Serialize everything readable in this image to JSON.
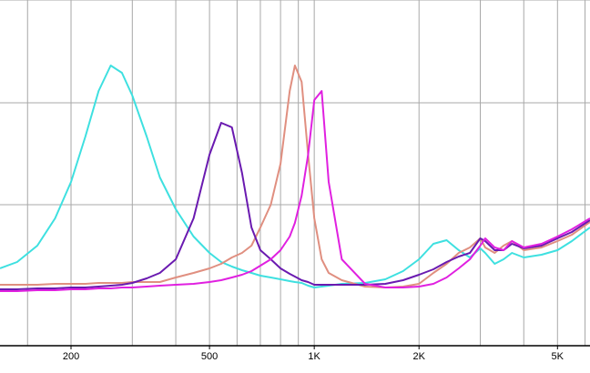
{
  "chart_data": {
    "type": "line",
    "xscale": "log",
    "xlim": [
      125,
      6200
    ],
    "ylim": [
      0,
      380
    ],
    "xticks": [
      200,
      500,
      {
        "value": 1000,
        "label": "1K"
      },
      {
        "value": 2000,
        "label": "2K"
      },
      {
        "value": 5000,
        "label": "5K"
      }
    ],
    "xgrid": [
      150,
      200,
      300,
      400,
      500,
      600,
      700,
      800,
      900,
      1000,
      2000,
      3000,
      4000,
      5000,
      6000
    ],
    "ygrid": [
      155,
      267,
      380
    ],
    "grid": true,
    "x": [
      125,
      140,
      160,
      180,
      200,
      220,
      240,
      260,
      280,
      300,
      330,
      360,
      400,
      450,
      500,
      540,
      580,
      620,
      660,
      700,
      750,
      800,
      850,
      880,
      920,
      960,
      1000,
      1050,
      1100,
      1200,
      1400,
      1600,
      1800,
      2000,
      2200,
      2400,
      2600,
      2800,
      3000,
      3100,
      3300,
      3500,
      3700,
      4000,
      4500,
      5000,
      5500,
      6200
    ],
    "series": [
      {
        "color": "#3ee0e0",
        "values": [
          85,
          92,
          110,
          140,
          180,
          230,
          280,
          308,
          300,
          275,
          230,
          185,
          150,
          120,
          102,
          92,
          87,
          83,
          80,
          77,
          75,
          73,
          71,
          70,
          69,
          66,
          64,
          65,
          66,
          68,
          69,
          73,
          82,
          95,
          112,
          116,
          105,
          97,
          107,
          102,
          90,
          95,
          102,
          97,
          100,
          105,
          115,
          130
        ]
      },
      {
        "color": "#e08f80",
        "values": [
          67,
          67,
          67,
          68,
          68,
          68,
          69,
          69,
          69,
          70,
          70,
          70,
          75,
          80,
          85,
          90,
          97,
          102,
          110,
          130,
          155,
          200,
          280,
          308,
          290,
          210,
          140,
          95,
          80,
          72,
          65,
          64,
          65,
          68,
          80,
          90,
          102,
          108,
          118,
          108,
          102,
          110,
          115,
          105,
          108,
          115,
          122,
          136
        ]
      },
      {
        "color": "#6a1ab0",
        "values": [
          62,
          62,
          63,
          63,
          64,
          64,
          65,
          66,
          67,
          69,
          74,
          80,
          95,
          140,
          210,
          245,
          240,
          190,
          130,
          105,
          95,
          85,
          79,
          76,
          72,
          70,
          67,
          67,
          67,
          67,
          67,
          68,
          72,
          78,
          84,
          92,
          98,
          102,
          118,
          115,
          105,
          105,
          112,
          107,
          110,
          118,
          125,
          138
        ]
      },
      {
        "color": "#e020e0",
        "values": [
          60,
          60,
          61,
          61,
          62,
          62,
          63,
          63,
          64,
          64,
          65,
          66,
          67,
          68,
          70,
          72,
          75,
          78,
          82,
          88,
          95,
          105,
          120,
          135,
          165,
          210,
          270,
          280,
          180,
          95,
          68,
          64,
          64,
          65,
          68,
          75,
          85,
          95,
          110,
          118,
          108,
          105,
          115,
          108,
          112,
          120,
          128,
          140
        ]
      }
    ]
  }
}
